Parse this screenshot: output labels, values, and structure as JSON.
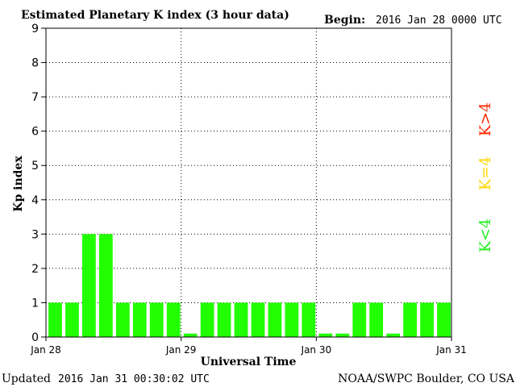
{
  "header": {
    "title": "Estimated Planetary K index (3 hour data)",
    "begin_label": "Begin:",
    "begin_value": "2016 Jan 28 0000 UTC"
  },
  "footer": {
    "updated_label": "Updated",
    "updated_value": "2016 Jan 31 00:30:02 UTC",
    "credit": "NOAA/SWPC Boulder, CO USA"
  },
  "legend": [
    {
      "label": "K>4",
      "color": "#ff2a00"
    },
    {
      "label": "K=4",
      "color": "#ffd700"
    },
    {
      "label": "K<4",
      "color": "#22ee22"
    }
  ],
  "chart_data": {
    "type": "bar",
    "title": "Estimated Planetary K index (3 hour data)",
    "xlabel": "Universal Time",
    "ylabel": "Kp index",
    "ylim": [
      0,
      9
    ],
    "yticks": [
      0,
      1,
      2,
      3,
      4,
      5,
      6,
      7,
      8,
      9
    ],
    "xticks": [
      "Jan 28",
      "Jan 29",
      "Jan 30",
      "Jan 31"
    ],
    "grid": true,
    "bar_color": "#22ff00",
    "values": [
      1,
      1,
      3,
      3,
      1,
      1,
      1,
      1,
      0.1,
      1,
      1,
      1,
      1,
      1,
      1,
      1,
      0.1,
      0.1,
      1,
      1,
      0.1,
      1,
      1,
      1
    ]
  }
}
